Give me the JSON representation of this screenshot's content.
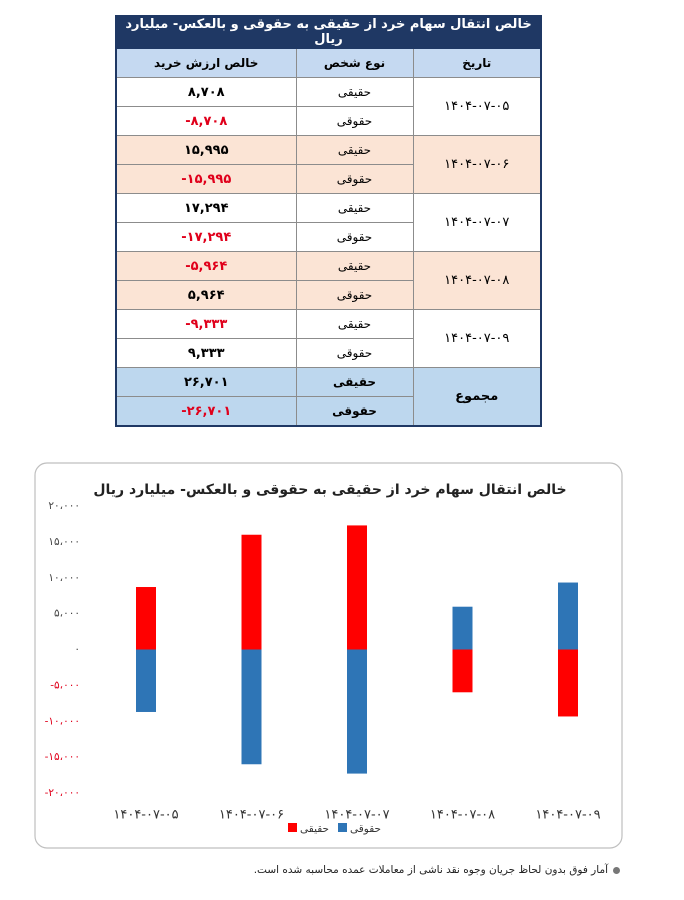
{
  "table": {
    "title": "خالص انتقال سهام خرد از حقیقی به حقوقی و بالعکس- میلیارد ریال",
    "headers": [
      "تاریخ",
      "نوع شخص",
      "خالص ارزش خرید"
    ],
    "groups": [
      {
        "date": "۱۴۰۴-۰۷-۰۵",
        "rows": [
          [
            "حقیقی",
            "۸,۷۰۸"
          ],
          [
            "حقوقی",
            "-۸,۷۰۸"
          ]
        ]
      },
      {
        "date": "۱۴۰۴-۰۷-۰۶",
        "rows": [
          [
            "حقیقی",
            "۱۵,۹۹۵"
          ],
          [
            "حقوقی",
            "-۱۵,۹۹۵"
          ]
        ]
      },
      {
        "date": "۱۴۰۴-۰۷-۰۷",
        "rows": [
          [
            "حقیقی",
            "۱۷,۲۹۴"
          ],
          [
            "حقوقی",
            "-۱۷,۲۹۴"
          ]
        ]
      },
      {
        "date": "۱۴۰۴-۰۷-۰۸",
        "rows": [
          [
            "حقیقی",
            "-۵,۹۶۴"
          ],
          [
            "حقوقی",
            "۵,۹۶۴"
          ]
        ]
      },
      {
        "date": "۱۴۰۴-۰۷-۰۹",
        "rows": [
          [
            "حقیقی",
            "-۹,۳۳۳"
          ],
          [
            "حقوقی",
            "۹,۳۳۳"
          ]
        ]
      },
      {
        "date": "مجموع",
        "rows": [
          [
            "حقیقی",
            "۲۶,۷۰۱"
          ],
          [
            "حقوقی",
            "-۲۶,۷۰۱"
          ]
        ]
      }
    ]
  },
  "chart_data": {
    "type": "bar",
    "title": "خالص انتقال سهام خرد از حقیقی به حقوقی و بالعکس- میلیارد ریال",
    "categories": [
      "۱۴۰۴-۰۷-۰۵",
      "۱۴۰۴-۰۷-۰۶",
      "۱۴۰۴-۰۷-۰۷",
      "۱۴۰۴-۰۷-۰۸",
      "۱۴۰۴-۰۷-۰۹"
    ],
    "series": [
      {
        "name": "حقیقی",
        "color": "#ff0000",
        "values": [
          8708,
          15995,
          17294,
          -5964,
          -9333
        ]
      },
      {
        "name": "حقوقی",
        "color": "#2e75b6",
        "values": [
          -8708,
          -15995,
          -17294,
          5964,
          9333
        ]
      }
    ],
    "ylim": [
      -20000,
      20000
    ],
    "yticks": [
      {
        "value": 20000,
        "label": "۲۰،۰۰۰"
      },
      {
        "value": 15000,
        "label": "۱۵،۰۰۰"
      },
      {
        "value": 10000,
        "label": "۱۰،۰۰۰"
      },
      {
        "value": 5000,
        "label": "۵،۰۰۰"
      },
      {
        "value": 0,
        "label": "۰"
      },
      {
        "value": -5000,
        "label": "-۵،۰۰۰"
      },
      {
        "value": -10000,
        "label": "-۱۰،۰۰۰"
      },
      {
        "value": -15000,
        "label": "-۱۵،۰۰۰"
      },
      {
        "value": -20000,
        "label": "-۲۰،۰۰۰"
      }
    ],
    "negative_tick_color": "#e0001b",
    "legend": "bottom"
  },
  "footnote": "آمار فوق بدون لحاظ جریان وجوه نقد ناشی از معاملات عمده محاسبه شده است."
}
